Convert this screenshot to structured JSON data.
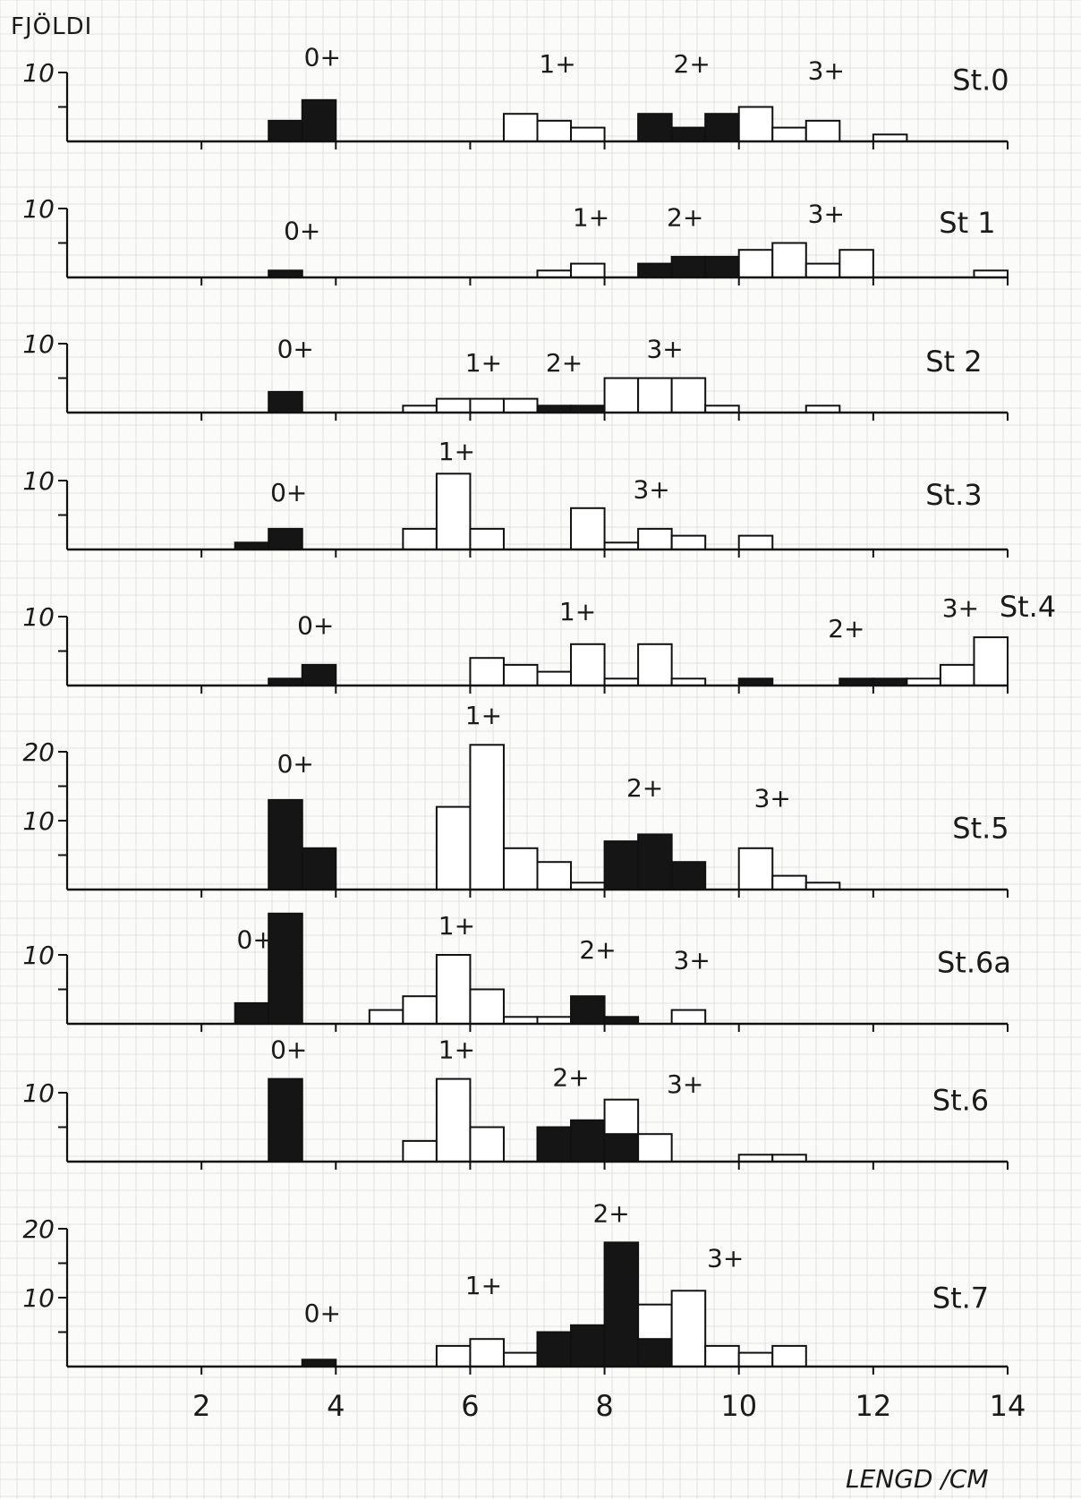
{
  "figure": {
    "ylabel": "FJÖLDI",
    "xlabel": "LENGD /CM",
    "x_ticks": [
      "2",
      "4",
      "6",
      "8",
      "10",
      "12",
      "14"
    ]
  },
  "chart_data": [
    {
      "type": "bar",
      "station": "St.0",
      "ymax": 10,
      "y_ticks": [
        "10"
      ],
      "bin_width": 0.5,
      "bars": [
        {
          "x": 3.0,
          "count": 3,
          "fill": "black"
        },
        {
          "x": 3.5,
          "count": 6,
          "fill": "black"
        },
        {
          "x": 6.5,
          "count": 4,
          "fill": "white"
        },
        {
          "x": 7.0,
          "count": 3,
          "fill": "white"
        },
        {
          "x": 7.5,
          "count": 2,
          "fill": "white"
        },
        {
          "x": 8.5,
          "count": 4,
          "fill": "black"
        },
        {
          "x": 9.0,
          "count": 2,
          "fill": "black"
        },
        {
          "x": 9.5,
          "count": 4,
          "fill": "black"
        },
        {
          "x": 10.0,
          "count": 5,
          "fill": "white"
        },
        {
          "x": 10.5,
          "count": 2,
          "fill": "white"
        },
        {
          "x": 11.0,
          "count": 3,
          "fill": "white"
        },
        {
          "x": 12.0,
          "count": 1,
          "fill": "white"
        }
      ],
      "labels": [
        {
          "text": "0+",
          "x": 3.8,
          "y": 11
        },
        {
          "text": "1+",
          "x": 7.3,
          "y": 10
        },
        {
          "text": "2+",
          "x": 9.3,
          "y": 10
        },
        {
          "text": "3+",
          "x": 11.3,
          "y": 9
        },
        {
          "text": "St.0",
          "x": 13.6,
          "y": 7.5
        }
      ]
    },
    {
      "type": "bar",
      "station": "St 1",
      "ymax": 10,
      "y_ticks": [
        "10"
      ],
      "bin_width": 0.5,
      "bars": [
        {
          "x": 3.0,
          "count": 1,
          "fill": "black"
        },
        {
          "x": 7.0,
          "count": 1,
          "fill": "white"
        },
        {
          "x": 7.5,
          "count": 2,
          "fill": "white"
        },
        {
          "x": 8.5,
          "count": 2,
          "fill": "black"
        },
        {
          "x": 9.0,
          "count": 3,
          "fill": "black"
        },
        {
          "x": 9.5,
          "count": 3,
          "fill": "black"
        },
        {
          "x": 10.0,
          "count": 4,
          "fill": "white"
        },
        {
          "x": 10.5,
          "count": 5,
          "fill": "white"
        },
        {
          "x": 11.0,
          "count": 2,
          "fill": "white"
        },
        {
          "x": 11.5,
          "count": 4,
          "fill": "white"
        },
        {
          "x": 13.5,
          "count": 1,
          "fill": "white"
        }
      ],
      "labels": [
        {
          "text": "0+",
          "x": 3.5,
          "y": 5.5
        },
        {
          "text": "1+",
          "x": 7.8,
          "y": 7.5
        },
        {
          "text": "2+",
          "x": 9.2,
          "y": 7.5
        },
        {
          "text": "3+",
          "x": 11.3,
          "y": 8
        },
        {
          "text": "St 1",
          "x": 13.4,
          "y": 6.5
        }
      ]
    },
    {
      "type": "bar",
      "station": "St 2",
      "ymax": 10,
      "y_ticks": [
        "10"
      ],
      "bin_width": 0.5,
      "bars": [
        {
          "x": 3.0,
          "count": 3,
          "fill": "black"
        },
        {
          "x": 5.0,
          "count": 1,
          "fill": "white"
        },
        {
          "x": 5.5,
          "count": 2,
          "fill": "white"
        },
        {
          "x": 6.0,
          "count": 2,
          "fill": "white"
        },
        {
          "x": 6.5,
          "count": 2,
          "fill": "white"
        },
        {
          "x": 7.0,
          "count": 1,
          "fill": "black"
        },
        {
          "x": 7.5,
          "count": 1,
          "fill": "black"
        },
        {
          "x": 8.0,
          "count": 5,
          "fill": "white"
        },
        {
          "x": 8.5,
          "count": 5,
          "fill": "white"
        },
        {
          "x": 9.0,
          "count": 5,
          "fill": "white"
        },
        {
          "x": 9.5,
          "count": 1,
          "fill": "white"
        },
        {
          "x": 11.0,
          "count": 1,
          "fill": "white"
        }
      ],
      "labels": [
        {
          "text": "0+",
          "x": 3.4,
          "y": 8
        },
        {
          "text": "1+",
          "x": 6.2,
          "y": 6
        },
        {
          "text": "2+",
          "x": 7.4,
          "y": 6
        },
        {
          "text": "3+",
          "x": 8.9,
          "y": 8
        },
        {
          "text": "St 2",
          "x": 13.2,
          "y": 6
        }
      ]
    },
    {
      "type": "bar",
      "station": "St.3",
      "ymax": 10,
      "y_ticks": [
        "10"
      ],
      "bin_width": 0.5,
      "bars": [
        {
          "x": 2.5,
          "count": 1,
          "fill": "black"
        },
        {
          "x": 3.0,
          "count": 3,
          "fill": "black"
        },
        {
          "x": 5.0,
          "count": 3,
          "fill": "white"
        },
        {
          "x": 5.5,
          "count": 11,
          "fill": "white"
        },
        {
          "x": 6.0,
          "count": 3,
          "fill": "white"
        },
        {
          "x": 7.5,
          "count": 6,
          "fill": "white"
        },
        {
          "x": 8.0,
          "count": 1,
          "fill": "white"
        },
        {
          "x": 8.5,
          "count": 3,
          "fill": "white"
        },
        {
          "x": 9.0,
          "count": 2,
          "fill": "white"
        },
        {
          "x": 10.0,
          "count": 2,
          "fill": "white"
        }
      ],
      "labels": [
        {
          "text": "0+",
          "x": 3.3,
          "y": 7
        },
        {
          "text": "1+",
          "x": 5.8,
          "y": 13
        },
        {
          "text": "3+",
          "x": 8.7,
          "y": 7.5
        },
        {
          "text": "St.3",
          "x": 13.2,
          "y": 6.5
        }
      ]
    },
    {
      "type": "bar",
      "station": "St.4",
      "ymax": 10,
      "y_ticks": [
        "10"
      ],
      "bin_width": 0.5,
      "bars": [
        {
          "x": 3.0,
          "count": 1,
          "fill": "black"
        },
        {
          "x": 3.5,
          "count": 3,
          "fill": "black"
        },
        {
          "x": 6.0,
          "count": 4,
          "fill": "white"
        },
        {
          "x": 6.5,
          "count": 3,
          "fill": "white"
        },
        {
          "x": 7.0,
          "count": 2,
          "fill": "white"
        },
        {
          "x": 7.5,
          "count": 6,
          "fill": "white"
        },
        {
          "x": 8.0,
          "count": 1,
          "fill": "white"
        },
        {
          "x": 8.5,
          "count": 6,
          "fill": "white"
        },
        {
          "x": 9.0,
          "count": 1,
          "fill": "white"
        },
        {
          "x": 10.0,
          "count": 1,
          "fill": "black"
        },
        {
          "x": 11.5,
          "count": 1,
          "fill": "black"
        },
        {
          "x": 12.0,
          "count": 1,
          "fill": "black"
        },
        {
          "x": 12.5,
          "count": 1,
          "fill": "white"
        },
        {
          "x": 13.0,
          "count": 3,
          "fill": "white"
        },
        {
          "x": 13.5,
          "count": 7,
          "fill": "white"
        }
      ],
      "labels": [
        {
          "text": "0+",
          "x": 3.7,
          "y": 7.5
        },
        {
          "text": "1+",
          "x": 7.6,
          "y": 9.5
        },
        {
          "text": "2+",
          "x": 11.6,
          "y": 7
        },
        {
          "text": "3+",
          "x": 13.3,
          "y": 10
        },
        {
          "text": "St.4",
          "x": 14.3,
          "y": 10
        }
      ]
    },
    {
      "type": "bar",
      "station": "St.5",
      "ymax": 20,
      "y_ticks": [
        "20",
        "10"
      ],
      "bin_width": 0.5,
      "bars": [
        {
          "x": 3.0,
          "count": 13,
          "fill": "black"
        },
        {
          "x": 3.5,
          "count": 6,
          "fill": "black"
        },
        {
          "x": 5.5,
          "count": 12,
          "fill": "white"
        },
        {
          "x": 6.0,
          "count": 21,
          "fill": "white"
        },
        {
          "x": 6.5,
          "count": 6,
          "fill": "white"
        },
        {
          "x": 7.0,
          "count": 4,
          "fill": "white"
        },
        {
          "x": 7.5,
          "count": 1,
          "fill": "white"
        },
        {
          "x": 8.0,
          "count": 7,
          "fill": "black"
        },
        {
          "x": 8.5,
          "count": 8,
          "fill": "black"
        },
        {
          "x": 9.0,
          "count": 4,
          "fill": "black"
        },
        {
          "x": 10.0,
          "count": 6,
          "fill": "white"
        },
        {
          "x": 10.5,
          "count": 2,
          "fill": "white"
        },
        {
          "x": 11.0,
          "count": 1,
          "fill": "white"
        }
      ],
      "labels": [
        {
          "text": "0+",
          "x": 3.4,
          "y": 17
        },
        {
          "text": "1+",
          "x": 6.2,
          "y": 24
        },
        {
          "text": "2+",
          "x": 8.6,
          "y": 13.5
        },
        {
          "text": "3+",
          "x": 10.5,
          "y": 12
        },
        {
          "text": "St.5",
          "x": 13.6,
          "y": 7.5
        }
      ]
    },
    {
      "type": "bar",
      "station": "St.6a",
      "ymax": 10,
      "y_ticks": [
        "10"
      ],
      "bin_width": 0.5,
      "bars": [
        {
          "x": 2.5,
          "count": 3,
          "fill": "black"
        },
        {
          "x": 3.0,
          "count": 16,
          "fill": "black"
        },
        {
          "x": 4.5,
          "count": 2,
          "fill": "white"
        },
        {
          "x": 5.0,
          "count": 4,
          "fill": "white"
        },
        {
          "x": 5.5,
          "count": 10,
          "fill": "white"
        },
        {
          "x": 6.0,
          "count": 5,
          "fill": "white"
        },
        {
          "x": 6.5,
          "count": 1,
          "fill": "white"
        },
        {
          "x": 7.0,
          "count": 1,
          "fill": "white"
        },
        {
          "x": 7.5,
          "count": 4,
          "fill": "black"
        },
        {
          "x": 8.0,
          "count": 1,
          "fill": "black"
        },
        {
          "x": 9.0,
          "count": 2,
          "fill": "white"
        }
      ],
      "labels": [
        {
          "text": "0+",
          "x": 2.8,
          "y": 11
        },
        {
          "text": "1+",
          "x": 5.8,
          "y": 13
        },
        {
          "text": "2+",
          "x": 7.9,
          "y": 9.5
        },
        {
          "text": "3+",
          "x": 9.3,
          "y": 8
        },
        {
          "text": "St.6a",
          "x": 13.5,
          "y": 7.5
        }
      ]
    },
    {
      "type": "bar",
      "station": "St.6",
      "ymax": 10,
      "y_ticks": [
        "10"
      ],
      "bin_width": 0.5,
      "bars": [
        {
          "x": 3.0,
          "count": 12,
          "fill": "black"
        },
        {
          "x": 5.0,
          "count": 3,
          "fill": "white"
        },
        {
          "x": 5.5,
          "count": 12,
          "fill": "white"
        },
        {
          "x": 6.0,
          "count": 5,
          "fill": "white"
        },
        {
          "x": 7.0,
          "count": 5,
          "fill": "black"
        },
        {
          "x": 7.5,
          "count": 6,
          "fill": "black"
        },
        {
          "x": 8.0,
          "count": 9,
          "fill": "white"
        },
        {
          "x": 8.0,
          "count": 4,
          "fill": "black"
        },
        {
          "x": 8.5,
          "count": 4,
          "fill": "white"
        },
        {
          "x": 10.0,
          "count": 1,
          "fill": "white"
        },
        {
          "x": 10.5,
          "count": 1,
          "fill": "white"
        }
      ],
      "labels": [
        {
          "text": "0+",
          "x": 3.3,
          "y": 15
        },
        {
          "text": "1+",
          "x": 5.8,
          "y": 15
        },
        {
          "text": "2+",
          "x": 7.5,
          "y": 11
        },
        {
          "text": "3+",
          "x": 9.2,
          "y": 10
        },
        {
          "text": "St.6",
          "x": 13.3,
          "y": 7.5
        }
      ]
    },
    {
      "type": "bar",
      "station": "St.7",
      "ymax": 20,
      "y_ticks": [
        "20",
        "10"
      ],
      "bin_width": 0.5,
      "bars": [
        {
          "x": 3.5,
          "count": 1,
          "fill": "black"
        },
        {
          "x": 5.5,
          "count": 3,
          "fill": "white"
        },
        {
          "x": 6.0,
          "count": 4,
          "fill": "white"
        },
        {
          "x": 6.5,
          "count": 2,
          "fill": "white"
        },
        {
          "x": 7.0,
          "count": 5,
          "fill": "black"
        },
        {
          "x": 7.5,
          "count": 6,
          "fill": "black"
        },
        {
          "x": 8.0,
          "count": 18,
          "fill": "black"
        },
        {
          "x": 8.5,
          "count": 9,
          "fill": "white"
        },
        {
          "x": 8.5,
          "count": 4,
          "fill": "black"
        },
        {
          "x": 9.0,
          "count": 11,
          "fill": "white"
        },
        {
          "x": 9.5,
          "count": 3,
          "fill": "white"
        },
        {
          "x": 10.0,
          "count": 2,
          "fill": "white"
        },
        {
          "x": 10.5,
          "count": 3,
          "fill": "white"
        }
      ],
      "labels": [
        {
          "text": "0+",
          "x": 3.8,
          "y": 6.5
        },
        {
          "text": "1+",
          "x": 6.2,
          "y": 10.5
        },
        {
          "text": "2+",
          "x": 8.1,
          "y": 21
        },
        {
          "text": "3+",
          "x": 9.8,
          "y": 14.5
        },
        {
          "text": "St.7",
          "x": 13.3,
          "y": 8.5
        }
      ]
    }
  ]
}
